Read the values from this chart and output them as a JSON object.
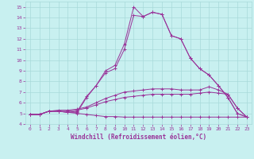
{
  "background_color": "#c8f0f0",
  "grid_color": "#a8dada",
  "line_color": "#993399",
  "title": "Windchill (Refroidissement éolien,°C)",
  "xlim": [
    -0.5,
    23.5
  ],
  "ylim": [
    4,
    15.5
  ],
  "xticks": [
    0,
    1,
    2,
    3,
    4,
    5,
    6,
    7,
    8,
    9,
    10,
    11,
    12,
    13,
    14,
    15,
    16,
    17,
    18,
    19,
    20,
    21,
    22,
    23
  ],
  "yticks": [
    4,
    5,
    6,
    7,
    8,
    9,
    10,
    11,
    12,
    13,
    14,
    15
  ],
  "series": [
    {
      "x": [
        0,
        1,
        2,
        3,
        4,
        5,
        6,
        7,
        8,
        9,
        10,
        11,
        12,
        13,
        14,
        15,
        16,
        17,
        18,
        19,
        20,
        21,
        22,
        23
      ],
      "y": [
        4.9,
        4.9,
        5.2,
        5.2,
        5.1,
        5.0,
        4.9,
        4.8,
        4.7,
        4.7,
        4.65,
        4.65,
        4.65,
        4.65,
        4.65,
        4.65,
        4.65,
        4.65,
        4.65,
        4.65,
        4.65,
        4.65,
        4.65,
        4.65
      ]
    },
    {
      "x": [
        0,
        1,
        2,
        3,
        4,
        5,
        6,
        7,
        8,
        9,
        10,
        11,
        12,
        13,
        14,
        15,
        16,
        17,
        18,
        19,
        20,
        21,
        22,
        23
      ],
      "y": [
        4.9,
        4.9,
        5.2,
        5.2,
        5.2,
        5.3,
        5.5,
        5.8,
        6.1,
        6.3,
        6.5,
        6.6,
        6.7,
        6.8,
        6.8,
        6.8,
        6.8,
        6.8,
        6.9,
        7.0,
        6.9,
        6.8,
        5.5,
        4.65
      ]
    },
    {
      "x": [
        0,
        1,
        2,
        3,
        4,
        5,
        6,
        7,
        8,
        9,
        10,
        11,
        12,
        13,
        14,
        15,
        16,
        17,
        18,
        19,
        20,
        21,
        22,
        23
      ],
      "y": [
        4.9,
        4.9,
        5.2,
        5.3,
        5.3,
        5.4,
        5.6,
        6.0,
        6.4,
        6.7,
        7.0,
        7.1,
        7.2,
        7.3,
        7.3,
        7.3,
        7.2,
        7.2,
        7.2,
        7.5,
        7.2,
        6.8,
        5.5,
        4.65
      ]
    },
    {
      "x": [
        0,
        1,
        2,
        3,
        4,
        5,
        6,
        7,
        8,
        9,
        10,
        11,
        12,
        13,
        14,
        15,
        16,
        17,
        18,
        19,
        20,
        21,
        22,
        23
      ],
      "y": [
        4.9,
        4.9,
        5.2,
        5.2,
        5.1,
        5.1,
        6.5,
        7.6,
        8.8,
        9.2,
        11.0,
        14.2,
        14.1,
        14.5,
        14.3,
        12.3,
        12.0,
        10.2,
        9.2,
        8.6,
        7.6,
        6.5,
        5.0,
        4.65
      ]
    },
    {
      "x": [
        0,
        1,
        2,
        3,
        4,
        5,
        6,
        7,
        8,
        9,
        10,
        11,
        12,
        13,
        14,
        15,
        16,
        17,
        18,
        19,
        20,
        21,
        22,
        23
      ],
      "y": [
        4.9,
        4.9,
        5.2,
        5.2,
        5.1,
        5.2,
        6.6,
        7.6,
        9.0,
        9.5,
        11.5,
        15.0,
        14.1,
        14.5,
        14.3,
        12.3,
        12.0,
        10.2,
        9.2,
        8.6,
        7.6,
        6.5,
        5.0,
        4.65
      ]
    }
  ]
}
